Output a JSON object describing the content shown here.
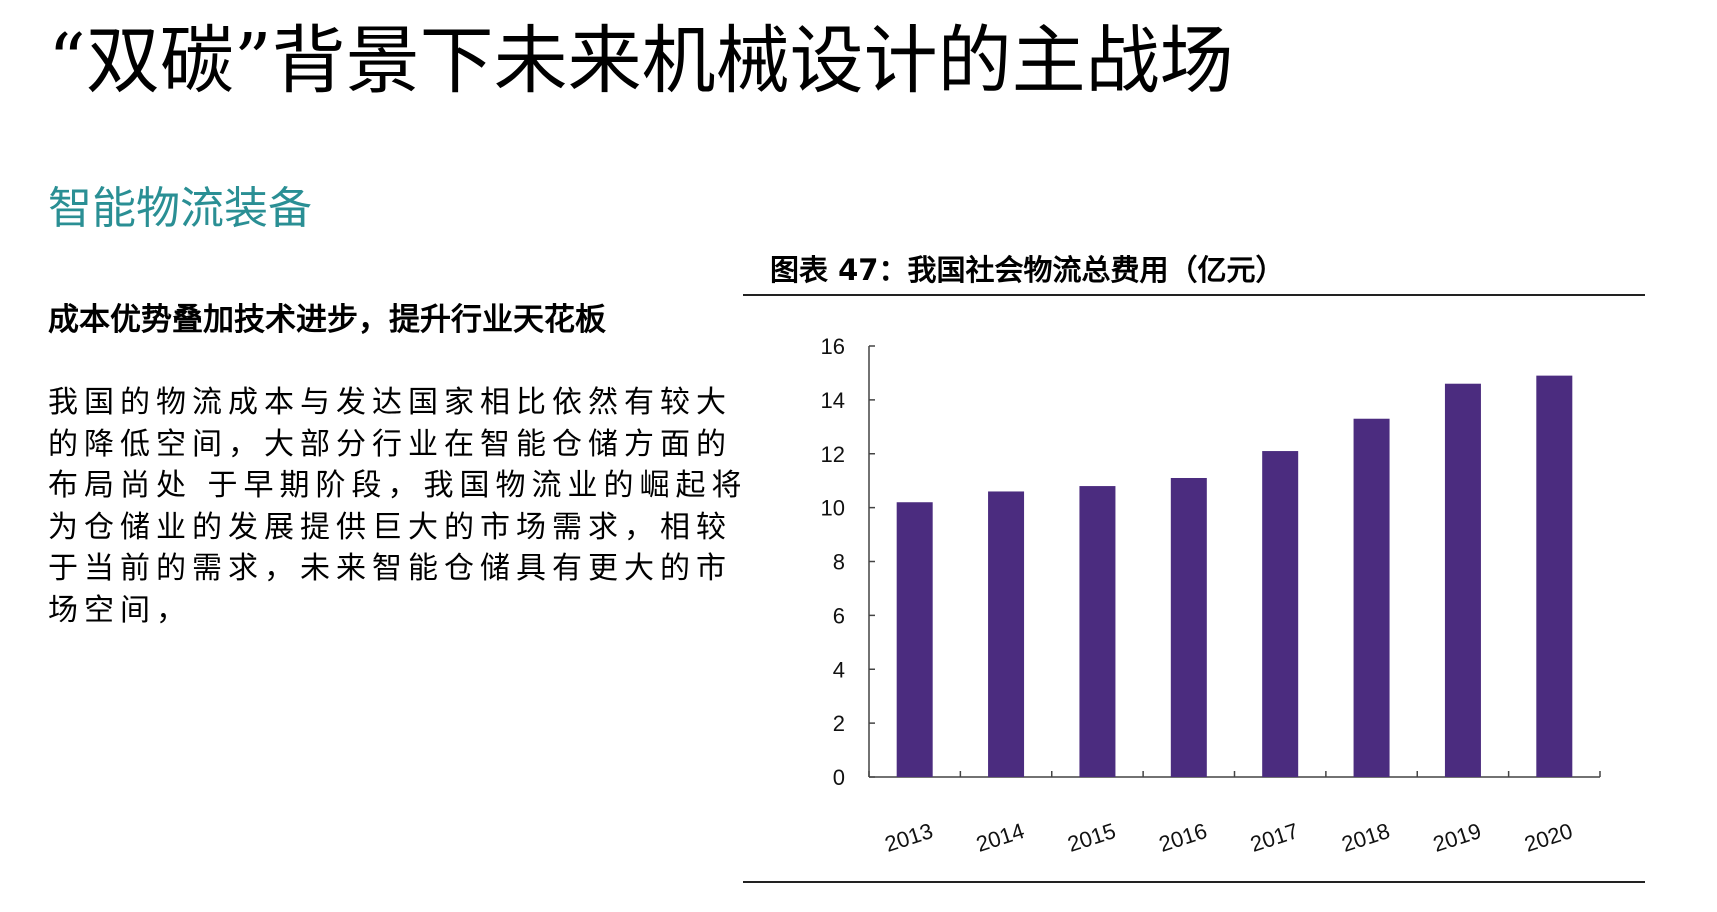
{
  "slide": {
    "title": "“双碳”背景下未来机械设计的主战场",
    "subtitle": "智能物流装备",
    "heading": "成本优势叠加技术进步，提升行业天花板",
    "body_lines": [
      "我国的物流成本与发达国家相比依然有较大",
      "的降低空间，大部分行业在智能仓储方面的",
      "布局尚处 于早期阶段，我国物流业的崛起将",
      "为仓储业的发展提供巨大的市场需求，相较",
      "于当前的需求，未来智能仓储具有更大的市",
      "场空间，"
    ]
  },
  "colors": {
    "subtitle": "#2a8f94",
    "bar": "#4b2c7f"
  },
  "chart_data": {
    "type": "bar",
    "title": "图表 47：我国社会物流总费用（亿元）",
    "categories": [
      "2013",
      "2014",
      "2015",
      "2016",
      "2017",
      "2018",
      "2019",
      "2020"
    ],
    "values": [
      10.2,
      10.6,
      10.8,
      11.1,
      12.1,
      13.3,
      14.6,
      14.9
    ],
    "yticks": [
      "0",
      "2",
      "4",
      "6",
      "8",
      "10",
      "12",
      "14",
      "16"
    ],
    "ylim": [
      0,
      16
    ],
    "xlabel": "",
    "ylabel": "",
    "grid": false,
    "legend": "none"
  }
}
